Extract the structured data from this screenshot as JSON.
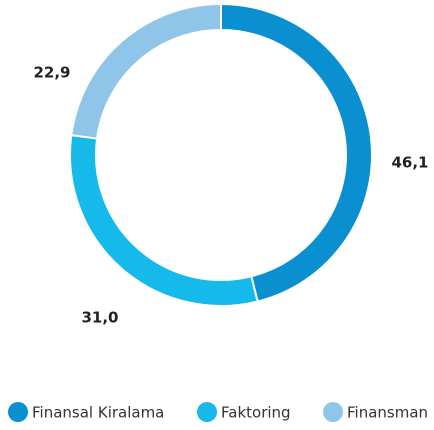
{
  "chart_data": {
    "type": "pie",
    "donut": true,
    "categories": [
      "Finansal Kiralama",
      "Faktoring",
      "Finansman"
    ],
    "values": [
      46.1,
      31.0,
      22.9
    ],
    "value_labels": [
      "46,1",
      "31,0",
      "22,9"
    ],
    "colors": [
      "#0a8fd0",
      "#15b9ea",
      "#8ec5e8"
    ],
    "legend": "bottom"
  }
}
